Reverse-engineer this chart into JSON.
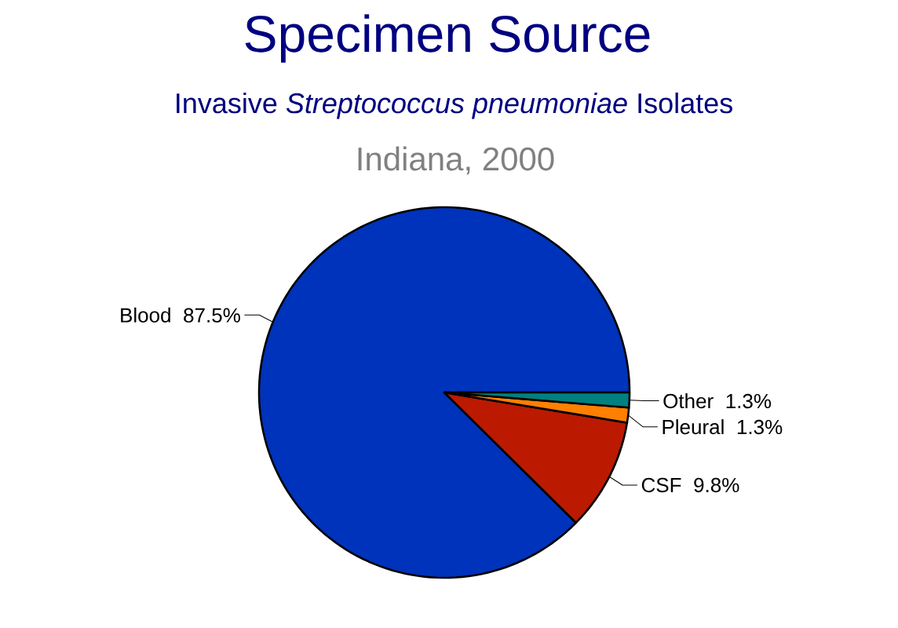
{
  "chart_data": {
    "type": "pie",
    "title": "Specimen Source",
    "subtitle": "Invasive *Streptococcus pneumoniae* Isolates",
    "annotations": [
      "Indiana, 2000"
    ],
    "categories": [
      "Blood",
      "CSF",
      "Pleural",
      "Other"
    ],
    "values": [
      87.5,
      9.8,
      1.3,
      1.3
    ],
    "colors": [
      "#0033bb",
      "#bb1a00",
      "#ff8000",
      "#008080"
    ],
    "value_labels": [
      "87.5%",
      "9.8%",
      "1.3%",
      "1.3%"
    ]
  }
}
